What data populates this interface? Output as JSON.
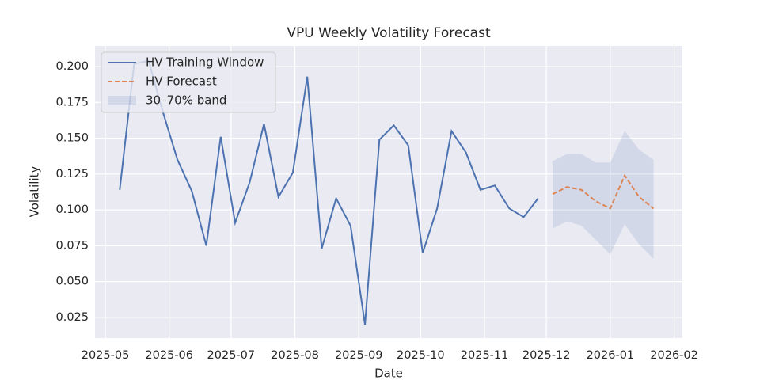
{
  "chart_data": {
    "type": "line",
    "title": "VPU Weekly Volatility Forecast",
    "x_label": "Date",
    "y_label": "Volatility",
    "grid": true,
    "legend": "upper left",
    "xlim": [
      "2025-04-26",
      "2026-02-05"
    ],
    "xticks": [
      {
        "value": "2025-05-01",
        "label": "2025-05"
      },
      {
        "value": "2025-06-01",
        "label": "2025-06"
      },
      {
        "value": "2025-07-01",
        "label": "2025-07"
      },
      {
        "value": "2025-08-01",
        "label": "2025-08"
      },
      {
        "value": "2025-09-01",
        "label": "2025-09"
      },
      {
        "value": "2025-10-01",
        "label": "2025-10"
      },
      {
        "value": "2025-11-01",
        "label": "2025-11"
      },
      {
        "value": "2025-12-01",
        "label": "2025-12"
      },
      {
        "value": "2026-01-01",
        "label": "2026-01"
      },
      {
        "value": "2026-02-01",
        "label": "2026-02"
      }
    ],
    "ylim": [
      0.0106,
      0.2144
    ],
    "yticks": [
      {
        "value": 0.025,
        "label": "0.025"
      },
      {
        "value": 0.05,
        "label": "0.050"
      },
      {
        "value": 0.075,
        "label": "0.075"
      },
      {
        "value": 0.1,
        "label": "0.100"
      },
      {
        "value": 0.125,
        "label": "0.125"
      },
      {
        "value": 0.15,
        "label": "0.150"
      },
      {
        "value": 0.175,
        "label": "0.175"
      },
      {
        "value": 0.2,
        "label": "0.200"
      }
    ],
    "series": [
      {
        "name": "HV Training Window",
        "color": "#4c72b0",
        "dash": "solid",
        "x": [
          "2025-05-08",
          "2025-05-15",
          "2025-05-22",
          "2025-05-29",
          "2025-06-05",
          "2025-06-12",
          "2025-06-19",
          "2025-06-26",
          "2025-07-03",
          "2025-07-10",
          "2025-07-17",
          "2025-07-24",
          "2025-07-31",
          "2025-08-07",
          "2025-08-14",
          "2025-08-21",
          "2025-08-28",
          "2025-09-04",
          "2025-09-11",
          "2025-09-18",
          "2025-09-25",
          "2025-10-02",
          "2025-10-09",
          "2025-10-16",
          "2025-10-23",
          "2025-10-30",
          "2025-11-06",
          "2025-11-13",
          "2025-11-20",
          "2025-11-27"
        ],
        "values": [
          0.114,
          0.202,
          0.204,
          0.168,
          0.135,
          0.113,
          0.075,
          0.151,
          0.091,
          0.119,
          0.16,
          0.109,
          0.126,
          0.193,
          0.073,
          0.108,
          0.089,
          0.02,
          0.149,
          0.159,
          0.145,
          0.07,
          0.101,
          0.155,
          0.14,
          0.114,
          0.117,
          0.101,
          0.095,
          0.108
        ]
      },
      {
        "name": "HV Forecast",
        "color": "#dd8452",
        "dash": "dashed",
        "x": [
          "2025-12-04",
          "2025-12-11",
          "2025-12-18",
          "2025-12-25",
          "2026-01-01",
          "2026-01-08",
          "2026-01-15",
          "2026-01-22"
        ],
        "values": [
          0.111,
          0.116,
          0.114,
          0.106,
          0.101,
          0.124,
          0.109,
          0.101
        ]
      }
    ],
    "band": {
      "name": "30–70% band",
      "color": "#4c72b0",
      "opacity": 0.15,
      "x": [
        "2025-12-04",
        "2025-12-11",
        "2025-12-18",
        "2025-12-25",
        "2026-01-01",
        "2026-01-08",
        "2026-01-15",
        "2026-01-22"
      ],
      "lower": [
        0.087,
        0.092,
        0.089,
        0.079,
        0.069,
        0.09,
        0.076,
        0.066
      ],
      "upper": [
        0.134,
        0.139,
        0.139,
        0.133,
        0.133,
        0.155,
        0.142,
        0.135
      ]
    }
  }
}
